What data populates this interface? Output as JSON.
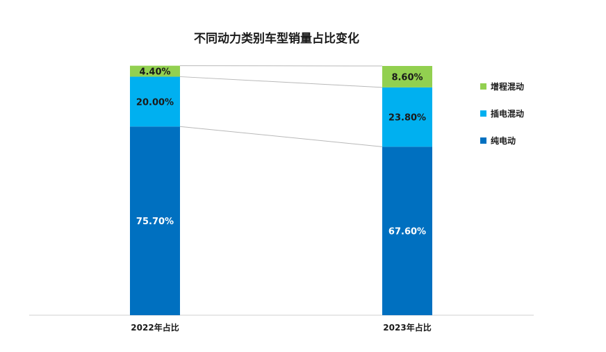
{
  "chart_data": {
    "type": "bar",
    "stacked": true,
    "title": "不同动力类别车型销量占比变化",
    "categories": [
      "2022年占比",
      "2023年占比"
    ],
    "series": [
      {
        "name": "纯电动",
        "values": [
          75.7,
          67.6
        ],
        "labels": [
          "75.70%",
          "67.60%"
        ],
        "color": "#0070c0",
        "label_color": "#ffffff"
      },
      {
        "name": "插电混动",
        "values": [
          20.0,
          23.8
        ],
        "labels": [
          "20.00%",
          "23.80%"
        ],
        "color": "#00b0f0",
        "label_color": "#1a1a1a"
      },
      {
        "name": "增程混动",
        "values": [
          4.4,
          8.6
        ],
        "labels": [
          "4.40%",
          "8.60%"
        ],
        "color": "#92d050",
        "label_color": "#1a1a1a"
      }
    ],
    "legend_order": [
      "增程混动",
      "插电混动",
      "纯电动"
    ],
    "legend_position": "right",
    "ylim": [
      0,
      100
    ],
    "grid": false,
    "series_lines": true
  }
}
